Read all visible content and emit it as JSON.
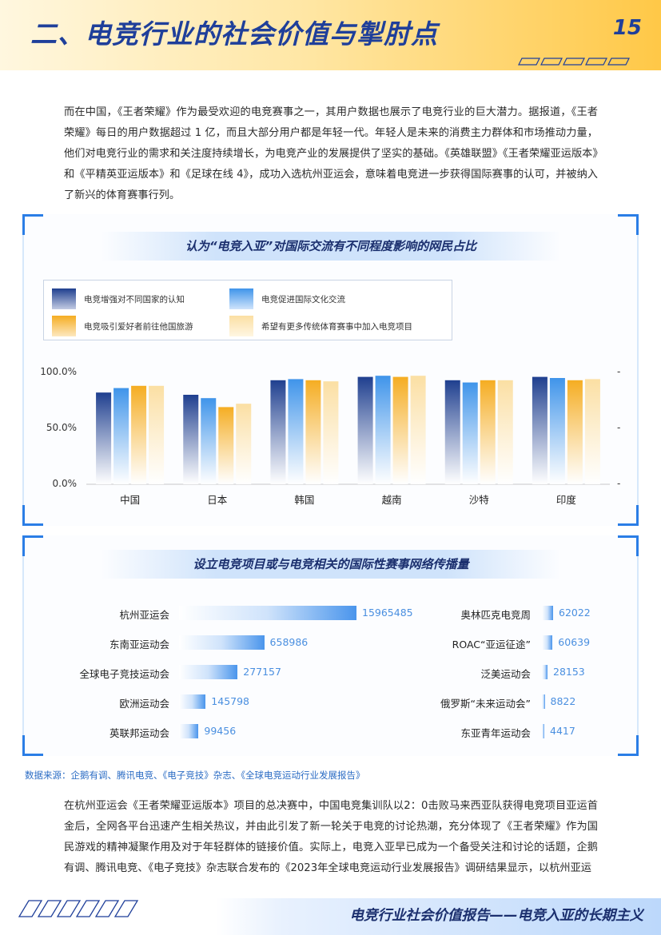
{
  "header": {
    "title": "二、电竞行业的社会价值与掣肘点",
    "page_number": "15"
  },
  "intro_paragraph": "而在中国，《王者荣耀》作为最受欢迎的电竞赛事之一，其用户数据也展示了电竞行业的巨大潜力。据报道，《王者荣耀》每日的用户数据超过 1 亿，而且大部分用户都是年轻一代。年轻人是未来的消费主力群体和市场推动力量，他们对电竞行业的需求和关注度持续增长，为电竞产业的发展提供了坚实的基础。《英雄联盟》《王者荣耀亚运版本》和《平精英亚运版本》和《足球在线 4》，成功入选杭州亚运会，意味着电竞进一步获得国际赛事的认可，并被纳入了新兴的体育赛事行列。",
  "chart1": {
    "title": "认为“电竞入亚”对国际交流有不同程度影响的网民占比",
    "legend": [
      "电竞增强对不同国家的认知",
      "电竞促进国际文化交流",
      "电竞吸引爱好者前往他国旅游",
      "希望有更多传统体育赛事中加入电竞项目"
    ],
    "y_ticks": [
      "100.0%",
      "50.0%",
      "0.0%"
    ],
    "right_ticks": [
      "-",
      "-",
      "-"
    ]
  },
  "chart_data": {
    "type": "bar",
    "categories": [
      "中国",
      "日本",
      "韩国",
      "越南",
      "沙特",
      "印度"
    ],
    "ylim": [
      0,
      1.0
    ],
    "colors": [
      "#1f3f8f",
      "#3f94ea",
      "#f5ad22",
      "#fbdfa3"
    ],
    "series": [
      {
        "name": "电竞增强对不同国家的认知",
        "values": [
          0.82,
          0.8,
          0.93,
          0.96,
          0.93,
          0.96
        ]
      },
      {
        "name": "电竞促进国际文化交流",
        "values": [
          0.86,
          0.77,
          0.94,
          0.97,
          0.91,
          0.95
        ]
      },
      {
        "name": "电竞吸引爱好者前往他国旅游",
        "values": [
          0.88,
          0.69,
          0.93,
          0.96,
          0.93,
          0.93
        ]
      },
      {
        "name": "希望有更多传统体育赛事中加入电竞项目",
        "values": [
          0.88,
          0.72,
          0.92,
          0.97,
          0.93,
          0.94
        ]
      }
    ]
  },
  "chart2": {
    "title": "设立电竞项目或与电竞相关的国际性赛事网络传播量",
    "left": [
      {
        "label": "杭州亚运会",
        "value": "15965485",
        "share": 1.0
      },
      {
        "label": "东南亚运动会",
        "value": "658986",
        "share": 0.48
      },
      {
        "label": "全球电子竞技运动会",
        "value": "277157",
        "share": 0.33
      },
      {
        "label": "欧洲运动会",
        "value": "145798",
        "share": 0.15
      },
      {
        "label": "英联邦运动会",
        "value": "99456",
        "share": 0.11
      }
    ],
    "right": [
      {
        "label": "奥林匹克电竞周",
        "value": "62022",
        "share": 1.0
      },
      {
        "label": "ROAC“亚运征途”",
        "value": "60639",
        "share": 0.95
      },
      {
        "label": "泛美运动会",
        "value": "28153",
        "share": 0.5
      },
      {
        "label": "俄罗斯“未来运动会”",
        "value": "8822",
        "share": 0.25
      },
      {
        "label": "东亚青年运动会",
        "value": "4417",
        "share": 0.12
      }
    ]
  },
  "source": "数据来源：企鹅有调、腾讯电竞、《电子竞技》杂志、《全球电竞运动行业发展报告》",
  "body_paragraph": "在杭州亚运会《王者荣耀亚运版本》项目的总决赛中，中国电竞集训队以2：0击败马来西亚队获得电竞项目亚运首金后，全网各平台迅速产生相关热议，并由此引发了新一轮关于电竞的讨论热潮，充分体现了《王者荣耀》作为国民游戏的精神凝聚作用及对于年轻群体的链接价值。实际上，电竞入亚早已成为一个备受关注和讨论的话题，企鹅有调、腾讯电竞、《电子竞技》杂志联合发布的《2023年全球电竞运动行业发展报告》调研结果显示，以杭州亚运",
  "footer": {
    "text": "电竞行业社会价值报告——电竞入亚的长期主义"
  }
}
